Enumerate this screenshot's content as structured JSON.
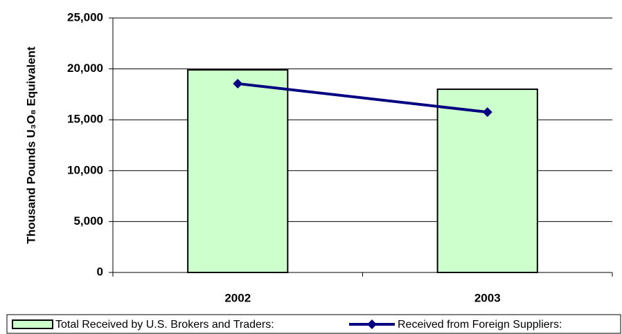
{
  "chart_data": {
    "type": "combo",
    "y_label": "Thousand Pounds U₃O₈ Equivalent",
    "categories": [
      "2002",
      "2003"
    ],
    "series": [
      {
        "name": "Total Received by U.S. Brokers and Traders:",
        "type": "bar",
        "color": "#ccffcc",
        "values": [
          19900,
          18000
        ]
      },
      {
        "name": "Received from Foreign Suppliers:",
        "type": "line",
        "color": "#000080",
        "values": [
          18550,
          15750
        ]
      }
    ],
    "ylim": [
      0,
      25000
    ],
    "yticks": [
      0,
      {
        "value": 5000,
        "label": "5,000"
      },
      {
        "value": 10000,
        "label": "10,000"
      },
      {
        "value": 15000,
        "label": "15,000"
      },
      {
        "value": 20000,
        "label": "20,000"
      },
      {
        "value": 25000,
        "label": "25,000"
      }
    ],
    "grid": true,
    "legend": "bottom"
  }
}
